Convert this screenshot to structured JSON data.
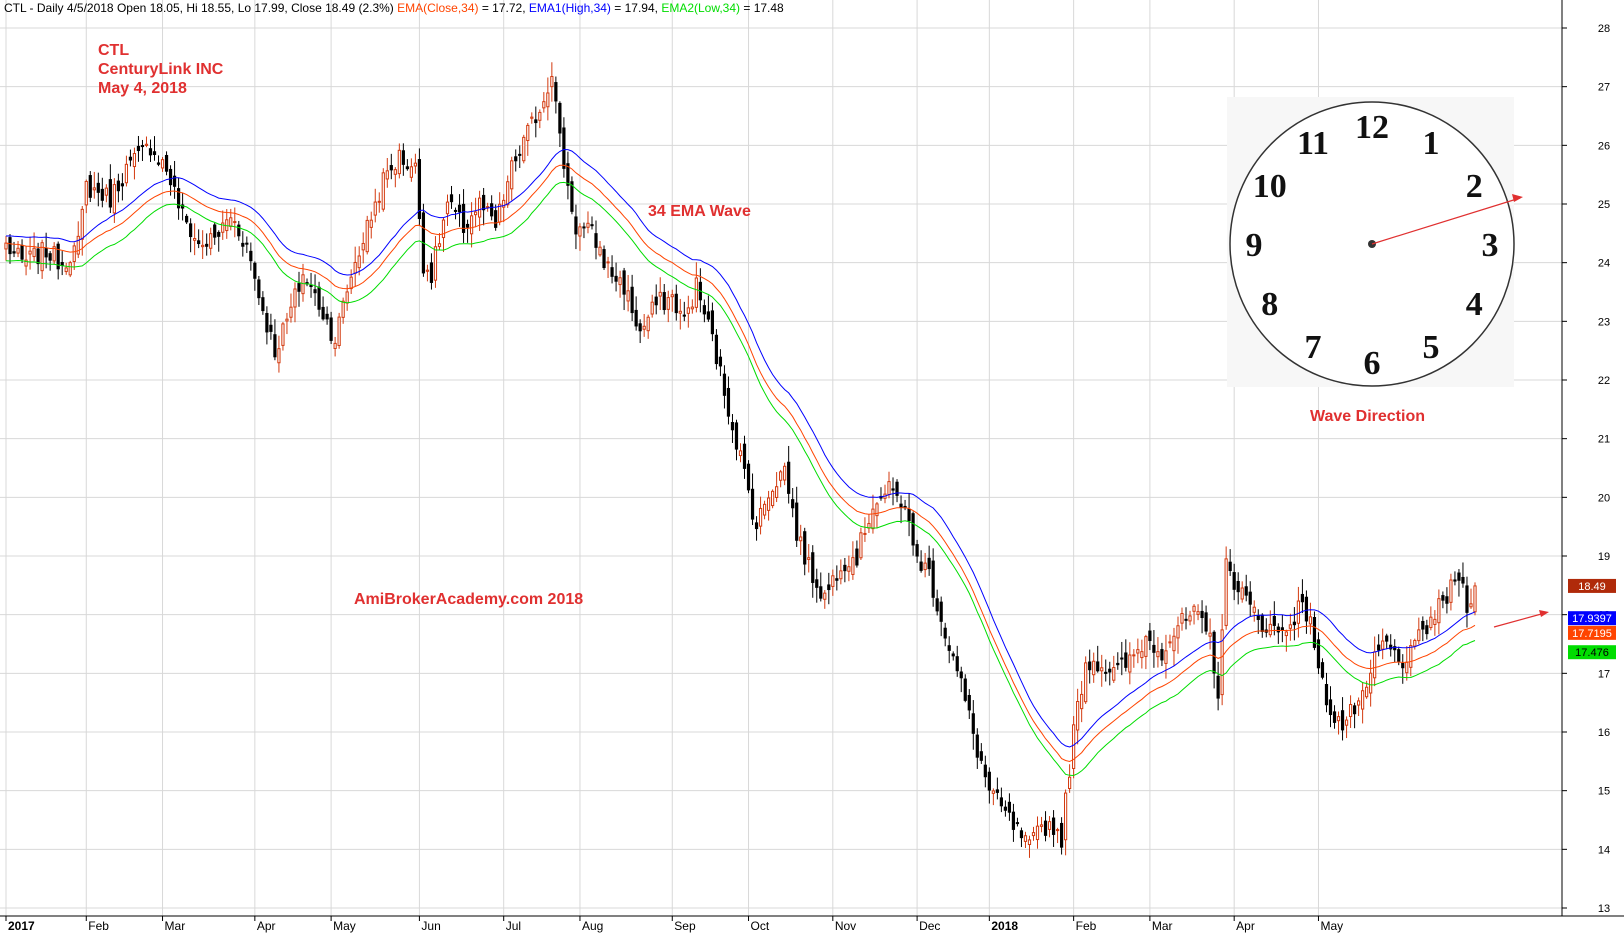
{
  "header": {
    "symbol_line": "CTL - Daily 4/5/2018 Open 18.05, Hi 18.55, Lo 17.99, Close 18.49 (2.3%)",
    "ema_label": "EMA(Close,34)",
    "ema_value": " = 17.72,",
    "ema1_label": "EMA1(High,34)",
    "ema1_value": " = 17.94,",
    "ema2_label": "EMA2(Low,34)",
    "ema2_value": " = 17.48"
  },
  "annotations": {
    "ticker": "CTL",
    "company": "CenturyLink INC",
    "date": "May 4, 2018",
    "ema_wave": "34 EMA Wave",
    "watermark": "AmiBrokerAcademy.com   2018",
    "wave_direction": "Wave Direction"
  },
  "clock": {
    "numbers": [
      "12",
      "1",
      "2",
      "3",
      "4",
      "5",
      "6",
      "7",
      "8",
      "9",
      "10",
      "11"
    ],
    "hand_hour_angle": 2.35
  },
  "price_tags": {
    "last": "18.49",
    "ema_high": "17.9397",
    "ema_close": "17.7195",
    "ema_low": "17.476"
  },
  "colors": {
    "up_candle": "#d33a0f",
    "down_candle": "#000000",
    "ema_close": "#ff4400",
    "ema_high": "#0000ff",
    "ema_low": "#00dd00",
    "annotation_red": "#e03030",
    "grid": "#d8d8d8",
    "tag_last": "#b02a0a",
    "tag_high": "#0000ff",
    "tag_close": "#ff4400",
    "tag_low": "#00dd00"
  },
  "chart_data": {
    "type": "candlestick",
    "title": "CTL - Daily",
    "y_axis": {
      "min": 13,
      "max": 28,
      "ticks": [
        13,
        14,
        15,
        16,
        17,
        18,
        19,
        20,
        21,
        22,
        23,
        24,
        25,
        26,
        27,
        28
      ]
    },
    "x_axis_labels": [
      {
        "label": "2017",
        "bold": true,
        "index": 0
      },
      {
        "label": "Feb",
        "bold": false,
        "index": 20
      },
      {
        "label": "Mar",
        "bold": false,
        "index": 39
      },
      {
        "label": "Apr",
        "bold": false,
        "index": 62
      },
      {
        "label": "May",
        "bold": false,
        "index": 81
      },
      {
        "label": "Jun",
        "bold": false,
        "index": 103
      },
      {
        "label": "Jul",
        "bold": false,
        "index": 124
      },
      {
        "label": "Aug",
        "bold": false,
        "index": 143
      },
      {
        "label": "Sep",
        "bold": false,
        "index": 166
      },
      {
        "label": "Oct",
        "bold": false,
        "index": 185
      },
      {
        "label": "Nov",
        "bold": false,
        "index": 206
      },
      {
        "label": "Dec",
        "bold": false,
        "index": 227
      },
      {
        "label": "2018",
        "bold": true,
        "index": 245
      },
      {
        "label": "Feb",
        "bold": false,
        "index": 266
      },
      {
        "label": "Mar",
        "bold": false,
        "index": 285
      },
      {
        "label": "Apr",
        "bold": false,
        "index": 306
      },
      {
        "label": "May",
        "bold": false,
        "index": 327
      }
    ],
    "anchors_close": [
      [
        0,
        24.3
      ],
      [
        4,
        24.0
      ],
      [
        10,
        24.2
      ],
      [
        14,
        24.0
      ],
      [
        18,
        24.3
      ],
      [
        20,
        25.3
      ],
      [
        26,
        25.1
      ],
      [
        30,
        25.6
      ],
      [
        36,
        26.0
      ],
      [
        40,
        25.6
      ],
      [
        44,
        24.8
      ],
      [
        48,
        24.3
      ],
      [
        52,
        24.4
      ],
      [
        56,
        24.8
      ],
      [
        60,
        24.3
      ],
      [
        64,
        23.2
      ],
      [
        67,
        22.5
      ],
      [
        70,
        23.0
      ],
      [
        74,
        23.8
      ],
      [
        78,
        23.3
      ],
      [
        82,
        22.7
      ],
      [
        86,
        23.8
      ],
      [
        90,
        24.6
      ],
      [
        94,
        25.4
      ],
      [
        98,
        25.8
      ],
      [
        102,
        25.6
      ],
      [
        104,
        24.0
      ],
      [
        106,
        23.8
      ],
      [
        110,
        25.0
      ],
      [
        114,
        24.6
      ],
      [
        118,
        25.0
      ],
      [
        122,
        24.6
      ],
      [
        126,
        25.6
      ],
      [
        130,
        26.2
      ],
      [
        134,
        26.8
      ],
      [
        136,
        27.3
      ],
      [
        138,
        26.1
      ],
      [
        140,
        25.3
      ],
      [
        142,
        24.6
      ],
      [
        146,
        24.5
      ],
      [
        150,
        23.9
      ],
      [
        154,
        23.6
      ],
      [
        158,
        22.8
      ],
      [
        162,
        23.3
      ],
      [
        166,
        23.4
      ],
      [
        169,
        23.0
      ],
      [
        172,
        23.6
      ],
      [
        176,
        22.7
      ],
      [
        179,
        21.8
      ],
      [
        183,
        20.7
      ],
      [
        187,
        19.5
      ],
      [
        190,
        20.1
      ],
      [
        194,
        20.5
      ],
      [
        197,
        19.4
      ],
      [
        200,
        18.8
      ],
      [
        204,
        18.3
      ],
      [
        208,
        18.9
      ],
      [
        212,
        19.0
      ],
      [
        216,
        19.9
      ],
      [
        220,
        20.1
      ],
      [
        224,
        19.9
      ],
      [
        226,
        19.1
      ],
      [
        230,
        18.7
      ],
      [
        234,
        17.7
      ],
      [
        238,
        16.8
      ],
      [
        242,
        15.7
      ],
      [
        245,
        15.0
      ],
      [
        248,
        14.7
      ],
      [
        252,
        14.3
      ],
      [
        255,
        14.0
      ],
      [
        258,
        14.4
      ],
      [
        261,
        14.4
      ],
      [
        263,
        14.2
      ],
      [
        266,
        16.0
      ],
      [
        269,
        17.2
      ],
      [
        272,
        17.2
      ],
      [
        276,
        17.0
      ],
      [
        280,
        17.2
      ],
      [
        284,
        17.6
      ],
      [
        288,
        17.4
      ],
      [
        292,
        17.8
      ],
      [
        296,
        18.0
      ],
      [
        300,
        17.6
      ],
      [
        302,
        16.7
      ],
      [
        304,
        18.8
      ],
      [
        307,
        18.5
      ],
      [
        310,
        18.1
      ],
      [
        314,
        17.8
      ],
      [
        318,
        17.7
      ],
      [
        322,
        18.1
      ],
      [
        325,
        18.0
      ],
      [
        327,
        17.0
      ],
      [
        330,
        16.4
      ],
      [
        333,
        16.1
      ],
      [
        336,
        16.4
      ],
      [
        339,
        16.6
      ],
      [
        341,
        17.3
      ],
      [
        344,
        17.5
      ],
      [
        347,
        17.2
      ],
      [
        350,
        17.3
      ],
      [
        353,
        17.7
      ],
      [
        356,
        18.0
      ],
      [
        359,
        18.3
      ],
      [
        362,
        18.7
      ],
      [
        364,
        18.2
      ],
      [
        366,
        18.49
      ]
    ],
    "ema_period": 34,
    "last": {
      "open": 18.05,
      "high": 18.55,
      "low": 17.99,
      "close": 18.49
    },
    "ema_close_last": 17.72,
    "ema_high_last": 17.94,
    "ema_low_last": 17.48
  }
}
